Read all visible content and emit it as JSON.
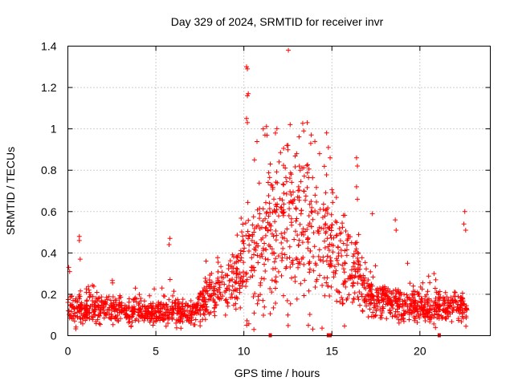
{
  "chart_data": {
    "type": "scatter",
    "title": "Day 329 of 2024, SRMTID for receiver invr",
    "xlabel": "GPS time / hours",
    "ylabel": "SRMTID / TECUs",
    "xlim": [
      0,
      24
    ],
    "ylim": [
      0,
      1.4
    ],
    "grid": true,
    "marker": "plus",
    "marker_color": "#ff0000",
    "xticks": [
      0,
      5,
      10,
      15,
      20
    ],
    "xtick_labels": [
      "0",
      "5",
      "10",
      "15",
      "20"
    ],
    "yticks": [
      0,
      0.2,
      0.4,
      0.6,
      0.8,
      1.0,
      1.2,
      1.4
    ],
    "ytick_labels": [
      "0",
      "0.2",
      "0.4",
      "0.6",
      "0.8",
      "1",
      "1.2",
      "1.4"
    ],
    "data_end_hour": 22.7,
    "baseline_profile": [
      [
        0,
        0.13
      ],
      [
        2,
        0.13
      ],
      [
        4,
        0.12
      ],
      [
        5,
        0.11
      ],
      [
        6,
        0.13
      ],
      [
        7,
        0.1
      ],
      [
        7.5,
        0.14
      ],
      [
        8,
        0.19
      ],
      [
        9,
        0.24
      ],
      [
        9.7,
        0.3
      ],
      [
        10.2,
        0.4
      ],
      [
        11,
        0.48
      ],
      [
        12,
        0.55
      ],
      [
        13,
        0.55
      ],
      [
        14,
        0.5
      ],
      [
        14.8,
        0.42
      ],
      [
        15.5,
        0.35
      ],
      [
        16.5,
        0.28
      ],
      [
        17,
        0.2
      ],
      [
        18,
        0.17
      ],
      [
        19,
        0.15
      ],
      [
        20,
        0.14
      ],
      [
        21,
        0.13
      ],
      [
        22,
        0.14
      ],
      [
        22.7,
        0.14
      ]
    ],
    "notable_points": [
      {
        "x": 10.15,
        "y": 1.3
      },
      {
        "x": 10.2,
        "y": 1.29
      },
      {
        "x": 10.25,
        "y": 1.17
      },
      {
        "x": 10.2,
        "y": 1.16
      },
      {
        "x": 10.15,
        "y": 1.05
      },
      {
        "x": 10.2,
        "y": 1.03
      },
      {
        "x": 11.1,
        "y": 1.0
      },
      {
        "x": 11.2,
        "y": 0.97
      },
      {
        "x": 13.6,
        "y": 1.03
      },
      {
        "x": 13.4,
        "y": 0.99
      },
      {
        "x": 14.7,
        "y": 0.98
      },
      {
        "x": 14.8,
        "y": 0.91
      },
      {
        "x": 14.9,
        "y": 0.86
      },
      {
        "x": 16.4,
        "y": 0.86
      },
      {
        "x": 16.45,
        "y": 0.82
      },
      {
        "x": 16.4,
        "y": 0.72
      },
      {
        "x": 16.45,
        "y": 0.66
      },
      {
        "x": 5.8,
        "y": 0.47
      },
      {
        "x": 5.75,
        "y": 0.44
      },
      {
        "x": 0.65,
        "y": 0.48
      },
      {
        "x": 0.65,
        "y": 0.46
      },
      {
        "x": 0.7,
        "y": 0.37
      },
      {
        "x": 0.05,
        "y": 0.33
      },
      {
        "x": 0.1,
        "y": 0.31
      },
      {
        "x": 18.6,
        "y": 0.56
      },
      {
        "x": 18.65,
        "y": 0.51
      },
      {
        "x": 17.3,
        "y": 0.59
      },
      {
        "x": 22.55,
        "y": 0.6
      },
      {
        "x": 22.5,
        "y": 0.54
      },
      {
        "x": 22.6,
        "y": 0.51
      },
      {
        "x": 20.8,
        "y": 0.3
      },
      {
        "x": 20.9,
        "y": 0.27
      },
      {
        "x": 19.3,
        "y": 0.35
      },
      {
        "x": 7.85,
        "y": 0.36
      },
      {
        "x": 12.0,
        "y": 0.84
      },
      {
        "x": 12.5,
        "y": 0.92
      },
      {
        "x": 13.0,
        "y": 0.88
      },
      {
        "x": 13.8,
        "y": 0.93
      },
      {
        "x": 14.3,
        "y": 0.88
      },
      {
        "x": 10.6,
        "y": 0.85
      },
      {
        "x": 11.5,
        "y": 0.83
      },
      {
        "x": 13.2,
        "y": 0.8
      }
    ],
    "gap_markers": [
      11.5,
      14.8,
      14.9,
      21.1
    ]
  }
}
